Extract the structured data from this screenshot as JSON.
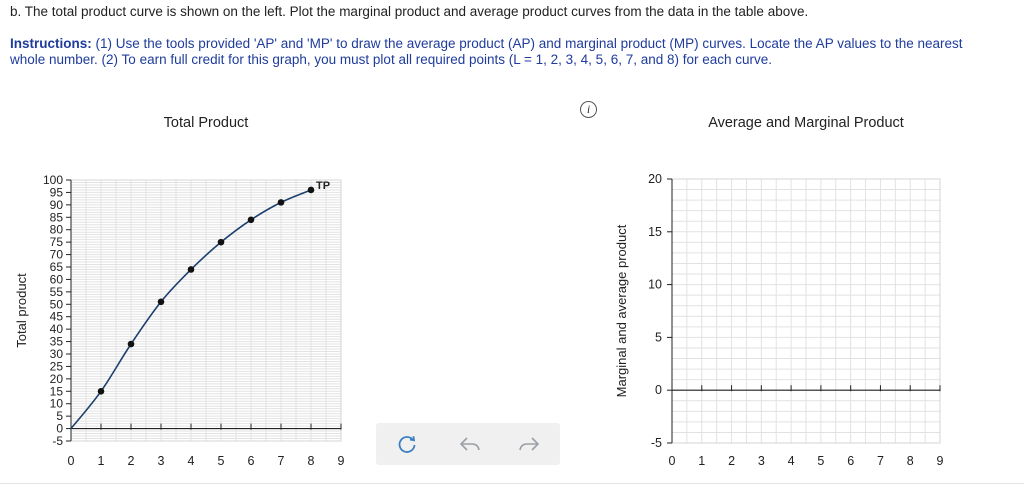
{
  "question": "b. The total product curve is shown on the left. Plot the marginal product and average product curves from the data in the table above.",
  "instructions": {
    "label": "Instructions:",
    "text": " (1) Use the tools provided 'AP' and 'MP' to draw the average product (AP) and marginal product (MP) curves. Locate the AP values to the nearest whole number. (2) To earn full credit for this graph, you must plot all required points (L = 1, 2, 3, 4, 5, 6, 7, and 8) for each curve."
  },
  "info_icon": "i",
  "icons": {
    "info": "info-icon",
    "reset": "reset-icon",
    "undo": "undo-icon",
    "redo": "redo-icon"
  },
  "colors": {
    "curve": "#1b3f6e",
    "point": "#111111",
    "accent": "#1f3c9c"
  },
  "chart_data": [
    {
      "type": "line",
      "title": "Total Product",
      "xlabel": "",
      "ylabel": "Total product",
      "xlim": [
        0,
        9
      ],
      "ylim": [
        -5,
        100
      ],
      "xticks": [
        0,
        1,
        2,
        3,
        4,
        5,
        6,
        7,
        8,
        9
      ],
      "yticks": [
        -5,
        0,
        5,
        10,
        15,
        20,
        25,
        30,
        35,
        40,
        45,
        50,
        55,
        60,
        65,
        70,
        75,
        80,
        85,
        90,
        95,
        100
      ],
      "grid": true,
      "series": [
        {
          "name": "TP",
          "x": [
            0,
            1,
            2,
            3,
            4,
            5,
            6,
            7,
            8
          ],
          "values": [
            0,
            15,
            34,
            51,
            64,
            75,
            84,
            91,
            96
          ]
        }
      ]
    },
    {
      "type": "line",
      "title": "Average and Marginal Product",
      "xlabel": "",
      "ylabel": "Marginal and average product",
      "xlim": [
        0,
        9
      ],
      "ylim": [
        -5,
        20
      ],
      "xticks": [
        0,
        1,
        2,
        3,
        4,
        5,
        6,
        7,
        8,
        9
      ],
      "yticks": [
        -5,
        0,
        5,
        10,
        15,
        20
      ],
      "grid": true,
      "series": []
    }
  ]
}
